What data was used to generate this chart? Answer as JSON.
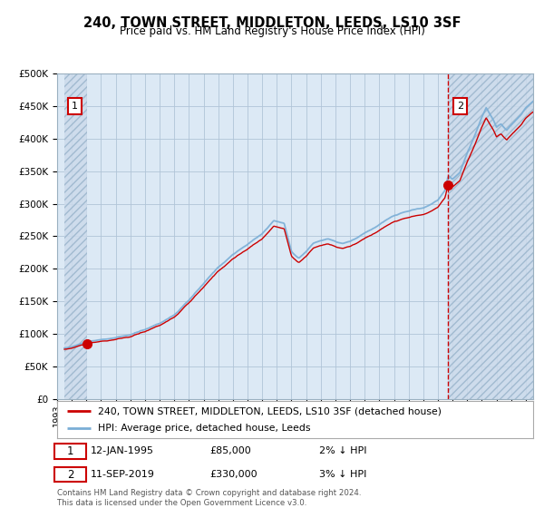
{
  "title": "240, TOWN STREET, MIDDLETON, LEEDS, LS10 3SF",
  "subtitle": "Price paid vs. HM Land Registry's House Price Index (HPI)",
  "legend_line1": "240, TOWN STREET, MIDDLETON, LEEDS, LS10 3SF (detached house)",
  "legend_line2": "HPI: Average price, detached house, Leeds",
  "annotation1_date": "12-JAN-1995",
  "annotation1_price": "£85,000",
  "annotation1_hpi": "2% ↓ HPI",
  "annotation2_date": "11-SEP-2019",
  "annotation2_price": "£330,000",
  "annotation2_hpi": "3% ↓ HPI",
  "footer": "Contains HM Land Registry data © Crown copyright and database right 2024.\nThis data is licensed under the Open Government Licence v3.0.",
  "sale1_year": 1995.04,
  "sale1_value": 85000,
  "sale2_year": 2019.69,
  "sale2_value": 330000,
  "ylim": [
    0,
    500000
  ],
  "xlim_start": 1993.5,
  "xlim_end": 2025.5,
  "bg_color": "#dce9f5",
  "hatch_color": "#b8cfe0",
  "grid_color": "#b0c4d8",
  "red_line_color": "#cc0000",
  "blue_line_color": "#7aaed6",
  "vline_color": "#cc0000"
}
